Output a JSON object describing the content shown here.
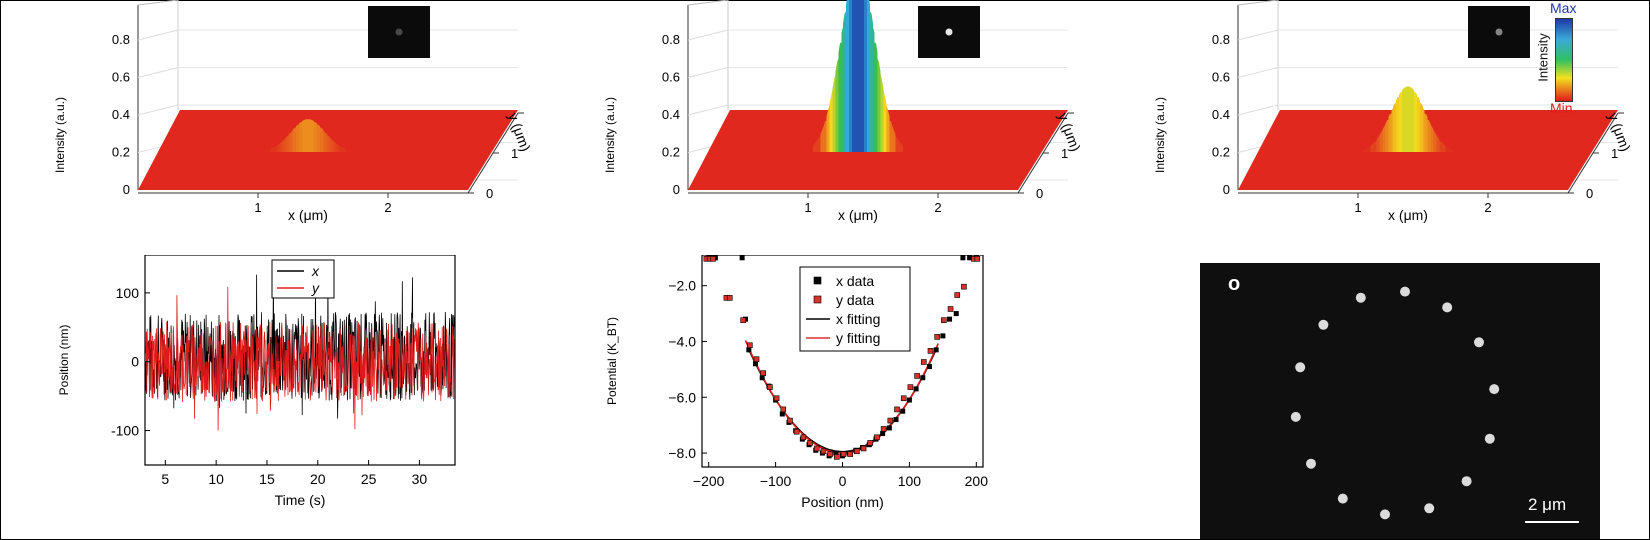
{
  "colors": {
    "surface_red": "#e0281e",
    "x_series": "#000000",
    "y_series": "#e01a1a",
    "colorbar_max": "#1f3aa8",
    "colorbar_min": "#e01a1a"
  },
  "top_panels": [
    {
      "ylabel": "Intensity (a.u.)",
      "xlabel": "x (μm)",
      "ylabel_3d": "y (μm)",
      "z_ticks": [
        "0",
        "0.2",
        "0.4",
        "0.6",
        "0.8"
      ],
      "x_ticks": [
        "1",
        "2"
      ],
      "y_ticks": [
        "0",
        "1",
        "2"
      ],
      "peak_intensity": 0.14,
      "inset_spot_brightness": 0.25
    },
    {
      "ylabel": "Intensity (a.u.)",
      "xlabel": "x (μm)",
      "ylabel_3d": "y (μm)",
      "z_ticks": [
        "0",
        "0.2",
        "0.4",
        "0.6",
        "0.8"
      ],
      "x_ticks": [
        "1",
        "2"
      ],
      "y_ticks": [
        "0",
        "1",
        "2"
      ],
      "peak_intensity": 0.8,
      "inset_spot_brightness": 0.9
    },
    {
      "ylabel": "Intensity (a.u.)",
      "xlabel": "x (μm)",
      "ylabel_3d": "y (μm)",
      "z_ticks": [
        "0",
        "0.2",
        "0.4",
        "0.6",
        "0.8"
      ],
      "x_ticks": [
        "1",
        "2"
      ],
      "y_ticks": [
        "0",
        "1",
        "2"
      ],
      "peak_intensity": 0.28,
      "inset_spot_brightness": 0.5
    }
  ],
  "colorbar": {
    "max_label": "Max",
    "min_label": "Min",
    "title": "Intensity"
  },
  "chart_data": [
    {
      "type": "line",
      "xlabel": "Time (s)",
      "ylabel": "Position (nm)",
      "xlim": [
        3,
        33.5
      ],
      "ylim": [
        -150,
        155
      ],
      "x_ticks": [
        5,
        10,
        15,
        20,
        25,
        30
      ],
      "y_ticks": [
        -100,
        0,
        100
      ],
      "series": [
        {
          "name": "x",
          "amplitude_nm": 50
        },
        {
          "name": "y",
          "amplitude_nm": 45
        }
      ],
      "legend": "top-center"
    },
    {
      "type": "scatter",
      "xlabel": "Position (nm)",
      "ylabel": "Potential (K_BT)",
      "xlim": [
        -210,
        210
      ],
      "ylim": [
        -8.5,
        -0.9
      ],
      "x_ticks": [
        -200,
        -100,
        0,
        100,
        200
      ],
      "y_ticks": [
        -2.0,
        -4.0,
        -6.0,
        -8.0
      ],
      "series": [
        {
          "name": "x data",
          "x": [
            -200,
            -195,
            -190,
            -150,
            -145,
            -140,
            -130,
            -120,
            -110,
            -100,
            -90,
            -80,
            -70,
            -60,
            -50,
            -40,
            -30,
            -20,
            -10,
            0,
            10,
            20,
            30,
            40,
            50,
            60,
            70,
            80,
            90,
            100,
            110,
            120,
            130,
            140,
            150,
            160,
            170,
            180,
            190,
            200
          ],
          "y": [
            -1.0,
            -1.0,
            -1.0,
            -1.0,
            -3.2,
            -4.3,
            -4.8,
            -5.3,
            -5.6,
            -6.1,
            -6.6,
            -6.9,
            -7.2,
            -7.5,
            -7.7,
            -7.9,
            -8.0,
            -8.1,
            -8.0,
            -8.1,
            -8.0,
            -7.9,
            -7.8,
            -7.7,
            -7.5,
            -7.3,
            -7.1,
            -6.8,
            -6.5,
            -6.1,
            -5.7,
            -5.3,
            -4.9,
            -4.3,
            -3.8,
            -3.2,
            -3.0,
            -1.0,
            -1.0,
            -1.0
          ]
        },
        {
          "name": "y data",
          "x": [
            -205,
            -200,
            -195,
            -175,
            -170,
            -150,
            -140,
            -130,
            -120,
            -110,
            -100,
            -90,
            -80,
            -70,
            -60,
            -50,
            -40,
            -30,
            -20,
            -10,
            0,
            10,
            20,
            30,
            40,
            50,
            60,
            70,
            80,
            90,
            100,
            110,
            120,
            130,
            140,
            150,
            160,
            170,
            180,
            195,
            200
          ],
          "y": [
            -1.0,
            -1.0,
            -1.0,
            -2.4,
            -2.4,
            -3.2,
            -4.1,
            -4.6,
            -5.1,
            -5.6,
            -6.0,
            -6.4,
            -6.8,
            -7.2,
            -7.4,
            -7.6,
            -7.8,
            -7.9,
            -8.0,
            -8.1,
            -8.0,
            -8.0,
            -7.9,
            -7.8,
            -7.6,
            -7.4,
            -7.1,
            -6.8,
            -6.4,
            -6.0,
            -5.6,
            -5.2,
            -4.7,
            -4.3,
            -3.8,
            -3.2,
            -2.8,
            -2.3,
            -2.0,
            -1.0,
            -1.0
          ]
        },
        {
          "name": "x fitting",
          "quadratic": {
            "a": 0.000187,
            "x0": 0,
            "y0": -7.95
          },
          "range": [
            -140,
            140
          ]
        },
        {
          "name": "y fitting",
          "quadratic": {
            "a": 0.000192,
            "x0": 0,
            "y0": -8.0
          },
          "range": [
            -145,
            145
          ]
        }
      ],
      "legend": "top-center"
    }
  ],
  "micrograph": {
    "label": "o",
    "scale_bar": "2 μm",
    "spots_count": 14
  }
}
